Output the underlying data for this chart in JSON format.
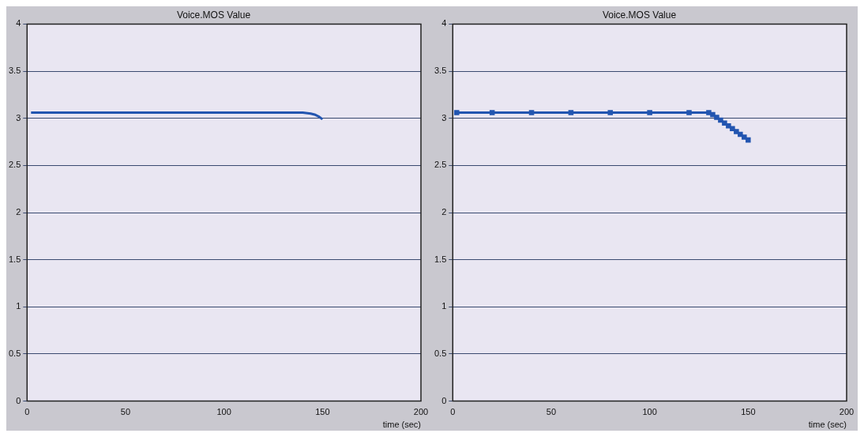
{
  "chart_data": [
    {
      "type": "line",
      "title": "Voice.MOS Value",
      "xlabel": "time (sec)",
      "xlim": [
        0,
        200
      ],
      "xticks": [
        0,
        50,
        100,
        150,
        200
      ],
      "ylim": [
        0,
        4
      ],
      "yticks": [
        0,
        0.5,
        1,
        1.5,
        2,
        2.5,
        3,
        3.5,
        4
      ],
      "grid": "y",
      "legend": false,
      "marker": "none",
      "series": [
        {
          "color": "#2255b0",
          "x": [
            2,
            20,
            40,
            60,
            80,
            100,
            120,
            140,
            144,
            146,
            148,
            150
          ],
          "values": [
            3.06,
            3.06,
            3.06,
            3.06,
            3.06,
            3.06,
            3.06,
            3.06,
            3.05,
            3.04,
            3.02,
            2.99
          ]
        }
      ]
    },
    {
      "type": "line",
      "title": "Voice.MOS Value",
      "xlabel": "time (sec)",
      "xlim": [
        0,
        200
      ],
      "xticks": [
        0,
        50,
        100,
        150,
        200
      ],
      "ylim": [
        0,
        4
      ],
      "yticks": [
        0,
        0.5,
        1,
        1.5,
        2,
        2.5,
        3,
        3.5,
        4
      ],
      "grid": "y",
      "legend": false,
      "marker": "square",
      "series": [
        {
          "color": "#2255b0",
          "x": [
            2,
            20,
            40,
            60,
            80,
            100,
            120,
            130,
            132,
            134,
            136,
            138,
            140,
            142,
            144,
            146,
            148,
            150
          ],
          "values": [
            3.06,
            3.06,
            3.06,
            3.06,
            3.06,
            3.06,
            3.06,
            3.06,
            3.04,
            3.01,
            2.98,
            2.95,
            2.92,
            2.89,
            2.86,
            2.83,
            2.8,
            2.77
          ]
        }
      ]
    }
  ]
}
